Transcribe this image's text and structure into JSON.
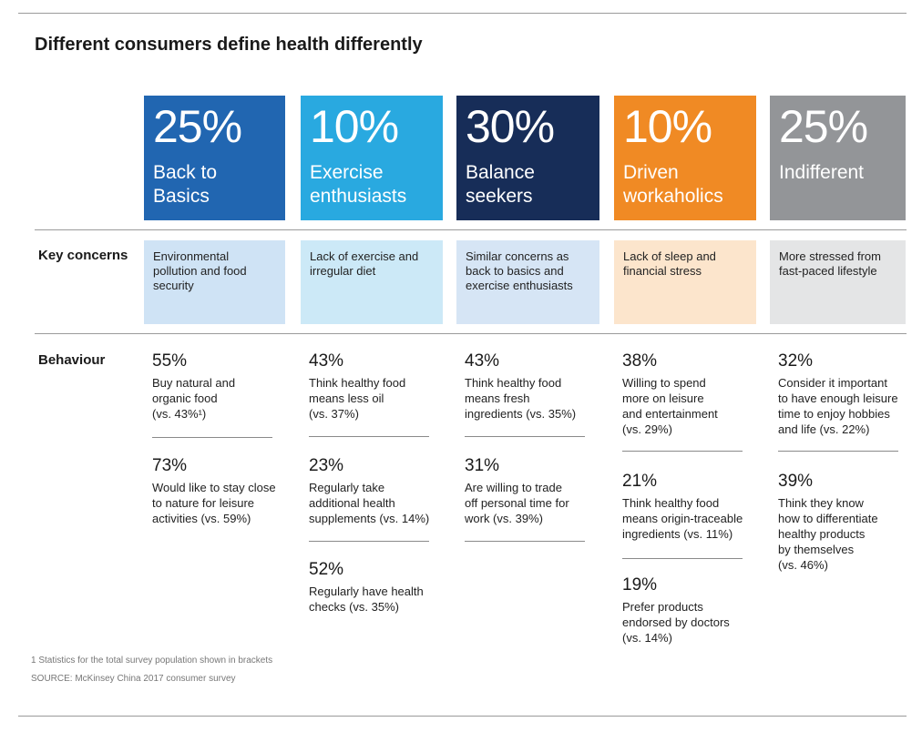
{
  "title": "Different consumers define health differently",
  "row_labels": {
    "concerns": "Key concerns",
    "behaviour": "Behaviour"
  },
  "segments": [
    {
      "pct": "25%",
      "label": "Back to\nBasics",
      "color": "#2166b1",
      "concern_bg": "#cfe3f5",
      "concern": "Environmental pollution and food security",
      "stats": [
        {
          "n": "55%",
          "d": "Buy natural and\norganic food\n(vs. 43%¹)"
        },
        {
          "n": "73%",
          "d": "Would like to stay close\nto nature for leisure\nactivities (vs. 59%)"
        }
      ]
    },
    {
      "pct": "10%",
      "label": "Exercise\nenthusiasts",
      "color": "#29a9e0",
      "concern_bg": "#cce9f7",
      "concern": "Lack of exercise and irregular diet",
      "stats": [
        {
          "n": "43%",
          "d": "Think healthy food\nmeans less oil\n(vs. 37%)"
        },
        {
          "n": "23%",
          "d": "Regularly take\nadditional health\nsupplements (vs. 14%)"
        },
        {
          "n": "52%",
          "d": "Regularly have health\nchecks (vs. 35%)"
        }
      ]
    },
    {
      "pct": "30%",
      "label": "Balance\nseekers",
      "color": "#172d58",
      "concern_bg": "#d6e5f5",
      "concern": "Similar concerns as back to basics and exercise enthusiasts",
      "stats": [
        {
          "n": "43%",
          "d": "Think healthy food\nmeans fresh\ningredients (vs. 35%)"
        },
        {
          "n": "31%",
          "d": "Are willing to trade\noff personal time for\nwork (vs. 39%)"
        }
      ]
    },
    {
      "pct": "10%",
      "label": "Driven\nworkaholics",
      "color": "#f08a24",
      "concern_bg": "#fce5cc",
      "concern": "Lack of sleep and financial stress",
      "stats": [
        {
          "n": "38%",
          "d": "Willing to spend\nmore on leisure\nand entertainment\n(vs. 29%)"
        },
        {
          "n": "21%",
          "d": "Think healthy food\nmeans origin-traceable\ningredients (vs. 11%)"
        },
        {
          "n": "19%",
          "d": "Prefer products\nendorsed by doctors\n(vs. 14%)"
        }
      ]
    },
    {
      "pct": "25%",
      "label": "Indifferent",
      "color": "#939598",
      "concern_bg": "#e4e5e6",
      "concern": "More stressed from fast-paced lifestyle",
      "stats": [
        {
          "n": "32%",
          "d": "Consider it important\nto have enough leisure\ntime to enjoy hobbies\nand life (vs. 22%)"
        },
        {
          "n": "39%",
          "d": "Think they know\nhow to differentiate\nhealthy products\nby themselves\n(vs. 46%)"
        }
      ]
    }
  ],
  "footnote": "1 Statistics for the total survey population shown in brackets",
  "source": "SOURCE: McKinsey China 2017 consumer survey"
}
